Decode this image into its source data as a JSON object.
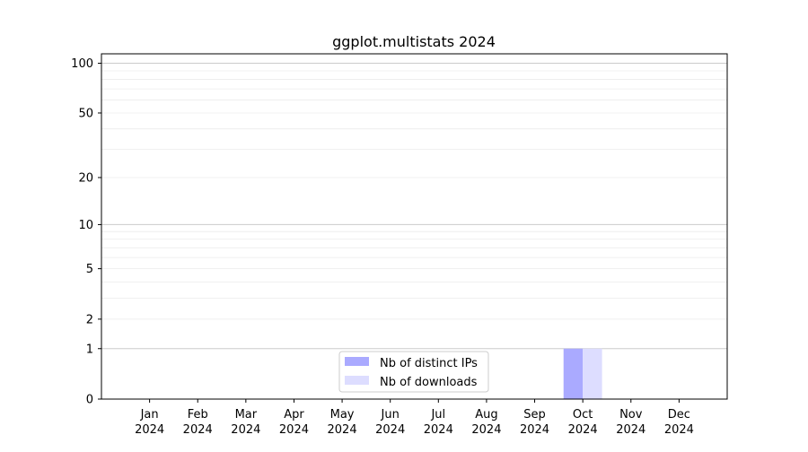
{
  "chart_data": {
    "type": "bar",
    "title": "ggplot.multistats 2024",
    "xlabel": "",
    "ylabel": "",
    "y_scale": "log1p",
    "ylim": [
      0,
      114
    ],
    "xlim": [
      0,
      13
    ],
    "yticks": [
      0,
      1,
      2,
      5,
      10,
      20,
      50,
      100
    ],
    "grid": "horizontal, major and minor",
    "categories": [
      "Jan\n2024",
      "Feb\n2024",
      "Mar\n2024",
      "Apr\n2024",
      "May\n2024",
      "Jun\n2024",
      "Jul\n2024",
      "Aug\n2024",
      "Sep\n2024",
      "Oct\n2024",
      "Nov\n2024",
      "Dec\n2024"
    ],
    "category_labels": [
      {
        "month": "Jan",
        "year": "2024"
      },
      {
        "month": "Feb",
        "year": "2024"
      },
      {
        "month": "Mar",
        "year": "2024"
      },
      {
        "month": "Apr",
        "year": "2024"
      },
      {
        "month": "May",
        "year": "2024"
      },
      {
        "month": "Jun",
        "year": "2024"
      },
      {
        "month": "Jul",
        "year": "2024"
      },
      {
        "month": "Aug",
        "year": "2024"
      },
      {
        "month": "Sep",
        "year": "2024"
      },
      {
        "month": "Oct",
        "year": "2024"
      },
      {
        "month": "Nov",
        "year": "2024"
      },
      {
        "month": "Dec",
        "year": "2024"
      }
    ],
    "series": [
      {
        "name": "Nb of distinct IPs",
        "color": "#aaaaff",
        "values": [
          0,
          0,
          0,
          0,
          0,
          0,
          0,
          0,
          0,
          1,
          0,
          0
        ]
      },
      {
        "name": "Nb of downloads",
        "color": "#ddddff",
        "values": [
          0,
          0,
          0,
          0,
          0,
          0,
          0,
          0,
          0,
          1,
          0,
          0
        ]
      }
    ],
    "legend": "bottom-center"
  }
}
